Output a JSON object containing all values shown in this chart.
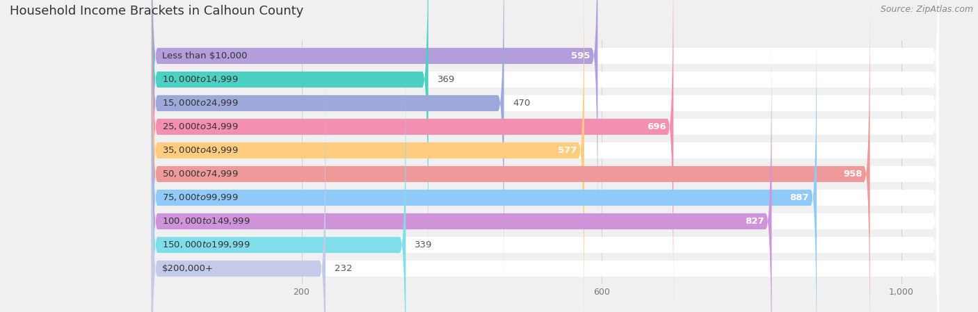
{
  "title": "Household Income Brackets in Calhoun County",
  "source": "Source: ZipAtlas.com",
  "categories": [
    "Less than $10,000",
    "$10,000 to $14,999",
    "$15,000 to $24,999",
    "$25,000 to $34,999",
    "$35,000 to $49,999",
    "$50,000 to $74,999",
    "$75,000 to $99,999",
    "$100,000 to $149,999",
    "$150,000 to $199,999",
    "$200,000+"
  ],
  "values": [
    595,
    369,
    470,
    696,
    577,
    958,
    887,
    827,
    339,
    232
  ],
  "bar_colors": [
    "#b39ddb",
    "#4dd0c4",
    "#9fa8da",
    "#f48fb1",
    "#ffcc80",
    "#ef9a9a",
    "#90caf9",
    "#ce93d8",
    "#80deea",
    "#c5cae9"
  ],
  "data_max": 1000,
  "xlim_max": 1050,
  "xticks": [
    200,
    600,
    1000
  ],
  "xtick_labels": [
    "200",
    "600",
    "1,000"
  ],
  "background_color": "#f0f0f0",
  "bar_bg_color": "#ffffff",
  "title_fontsize": 13,
  "label_fontsize": 9.5,
  "value_fontsize": 9.5,
  "source_fontsize": 9,
  "value_threshold": 500
}
